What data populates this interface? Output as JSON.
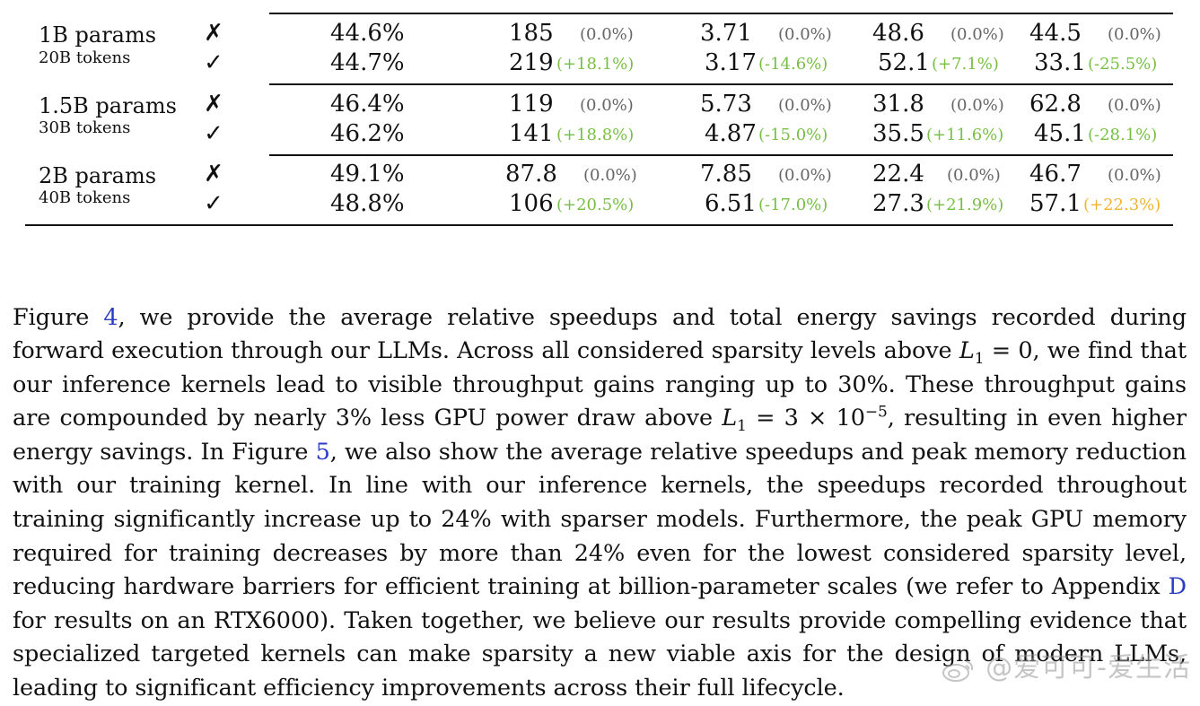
{
  "table": {
    "rows": [
      {
        "model": "1B params",
        "tokens": "20B tokens",
        "lines": [
          {
            "mark": "✗",
            "acc": "44.6%",
            "v1": "185",
            "d1": "(0.0%)",
            "v2": "3.71",
            "d2": "(0.0%)",
            "v3": "48.6",
            "d3": "(0.0%)",
            "v4": "44.5",
            "d4": "(0.0%)"
          },
          {
            "mark": "✓",
            "acc": "44.7%",
            "v1": "219",
            "d1": "(+18.1%)",
            "v2": "3.17",
            "d2": "(-14.6%)",
            "v3": "52.1",
            "d3": "(+7.1%)",
            "v4": "33.1",
            "d4": "(-25.5%)"
          }
        ]
      },
      {
        "model": "1.5B params",
        "tokens": "30B tokens",
        "lines": [
          {
            "mark": "✗",
            "acc": "46.4%",
            "v1": "119",
            "d1": "(0.0%)",
            "v2": "5.73",
            "d2": "(0.0%)",
            "v3": "31.8",
            "d3": "(0.0%)",
            "v4": "62.8",
            "d4": "(0.0%)"
          },
          {
            "mark": "✓",
            "acc": "46.2%",
            "v1": "141",
            "d1": "(+18.8%)",
            "v2": "4.87",
            "d2": "(-15.0%)",
            "v3": "35.5",
            "d3": "(+11.6%)",
            "v4": "45.1",
            "d4": "(-28.1%)"
          }
        ]
      },
      {
        "model": "2B params",
        "tokens": "40B tokens",
        "lines": [
          {
            "mark": "✗",
            "acc": "49.1%",
            "v1": "87.8",
            "d1": "(0.0%)",
            "v2": "7.85",
            "d2": "(0.0%)",
            "v3": "22.4",
            "d3": "(0.0%)",
            "v4": "46.7",
            "d4": "(0.0%)"
          },
          {
            "mark": "✓",
            "acc": "48.8%",
            "v1": "106",
            "d1": "(+20.5%)",
            "v2": "6.51",
            "d2": "(-17.0%)",
            "v3": "27.3",
            "d3": "(+21.9%)",
            "v4": "57.1",
            "d4": "(+22.3%)"
          }
        ]
      }
    ]
  },
  "paragraph": {
    "s1": "Figure ",
    "ref_fig4": "4",
    "s2": ", we provide the average relative speedups and total energy savings recorded during forward execution through our LLMs. Across all considered sparsity levels above ",
    "math1_var": "L",
    "math1_sub": "1",
    "math1_rest": " = 0",
    "s3": ", we find that our inference kernels lead to visible throughput gains ranging up to 30%. These throughput gains are compounded by nearly 3% less GPU power draw above ",
    "math2_var": "L",
    "math2_sub": "1",
    "math2_mid": " = 3 × 10",
    "math2_sup": "−5",
    "s4": ", resulting in even higher energy savings. In Figure ",
    "ref_fig5": "5",
    "s5": ", we also show the average relative speedups and peak memory reduction with our training kernel. In line with our inference kernels, the speedups recorded throughout training significantly increase up to 24% with sparser models. Furthermore, the peak GPU memory required for training decreases by more than 24% even for the lowest considered sparsity level, reducing hardware barriers for efficient training at billion-parameter scales (we refer to Appendix ",
    "ref_appD": "D",
    "s6": " for results on an RTX6000). Taken together, we believe our results provide compelling evidence that specialized targeted kernels can make sparsity a new viable axis for the design of modern LLMs, leading to significant efficiency improvements across their full lifecycle."
  },
  "watermark": {
    "text": "@爱可可-爱生活"
  },
  "colors": {
    "positive": "#77c043",
    "warning": "#f0b431",
    "neutral": "#666666",
    "link": "#2b3cc4"
  }
}
